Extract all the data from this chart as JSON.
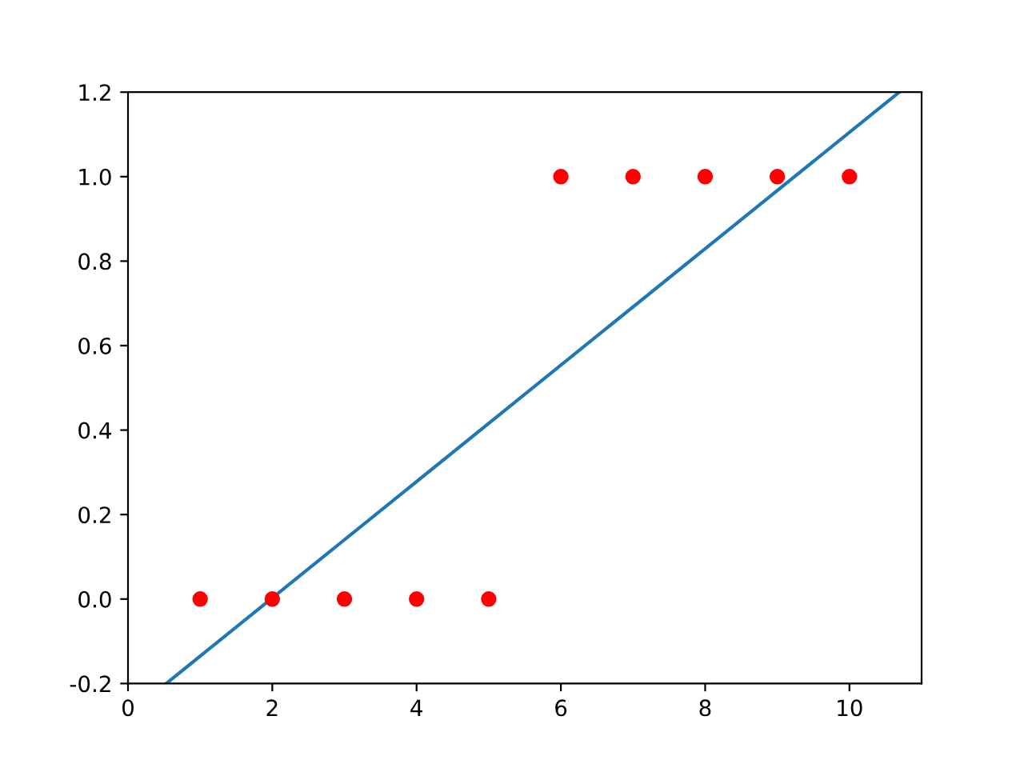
{
  "chart_data": {
    "type": "scatter",
    "xlim": [
      0,
      11
    ],
    "ylim": [
      -0.2,
      1.2
    ],
    "xticks": [
      0,
      2,
      4,
      6,
      8,
      10
    ],
    "yticks": [
      -0.2,
      {
        "value": 0,
        "label": "0.0"
      },
      0.2,
      0.4,
      0.6,
      0.8,
      {
        "value": 1,
        "label": "1.0"
      },
      1.2
    ],
    "grid": false,
    "legend": false,
    "series": [
      {
        "color": "#ff0000",
        "marker": "circle",
        "x": [
          1,
          2,
          3,
          4,
          5,
          6,
          7,
          8,
          9,
          10
        ],
        "values": [
          0,
          0,
          0,
          0,
          0,
          1,
          1,
          1,
          1,
          1
        ]
      },
      {
        "type": "line",
        "color": "#1f77b4",
        "marker": "none",
        "line_style": "solid",
        "x": [
          0.53,
          10.69
        ],
        "values": [
          -0.2,
          1.2
        ]
      }
    ]
  }
}
